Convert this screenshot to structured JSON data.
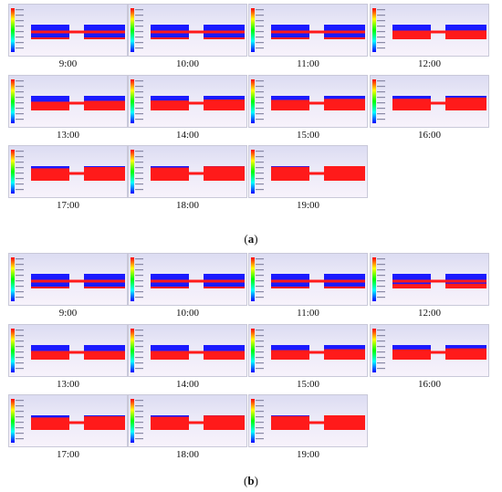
{
  "panels": [
    {
      "label_open": "(",
      "label_letter": "a",
      "label_close": ")",
      "style": "a",
      "tiles": [
        {
          "time": "9:00",
          "heat": 0.05
        },
        {
          "time": "10:00",
          "heat": 0.08
        },
        {
          "time": "11:00",
          "heat": 0.12
        },
        {
          "time": "12:00",
          "heat": 0.55
        },
        {
          "time": "13:00",
          "heat": 0.6
        },
        {
          "time": "14:00",
          "heat": 0.68
        },
        {
          "time": "15:00",
          "heat": 0.72
        },
        {
          "time": "16:00",
          "heat": 0.8
        },
        {
          "time": "17:00",
          "heat": 0.85
        },
        {
          "time": "18:00",
          "heat": 0.9
        },
        {
          "time": "19:00",
          "heat": 0.95
        }
      ]
    },
    {
      "label_open": "(",
      "label_letter": "b",
      "label_close": ")",
      "style": "b",
      "tiles": [
        {
          "time": "9:00",
          "heat": 0.05
        },
        {
          "time": "10:00",
          "heat": 0.08
        },
        {
          "time": "11:00",
          "heat": 0.12
        },
        {
          "time": "12:00",
          "heat": 0.3
        },
        {
          "time": "13:00",
          "heat": 0.45
        },
        {
          "time": "14:00",
          "heat": 0.5
        },
        {
          "time": "15:00",
          "heat": 0.65
        },
        {
          "time": "16:00",
          "heat": 0.7
        },
        {
          "time": "17:00",
          "heat": 0.85
        },
        {
          "time": "18:00",
          "heat": 0.9
        },
        {
          "time": "19:00",
          "heat": 0.95
        }
      ]
    }
  ],
  "colors": {
    "cold": "#1a1aff",
    "hot": "#ff1a1a",
    "band_b": "#b8860b",
    "legend_scale": [
      "#ff0000",
      "#ffff00",
      "#00ff00",
      "#00ffff",
      "#0000ff"
    ]
  }
}
